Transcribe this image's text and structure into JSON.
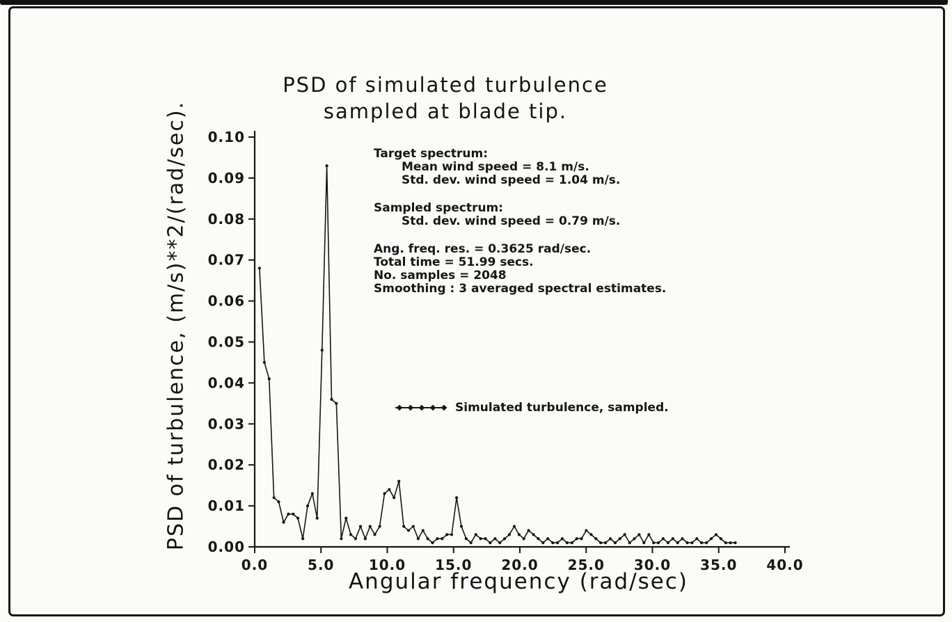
{
  "figure": {
    "title_line1": "PSD of simulated turbulence",
    "title_line2": "sampled at blade tip.",
    "ylabel": "PSD of turbulence, (m/s)**2/(rad/sec).",
    "xlabel": "Angular frequency (rad/sec)"
  },
  "annotations": {
    "target_header": "Target spectrum:",
    "target_mean": "Mean wind speed = 8.1 m/s.",
    "target_std": "Std. dev. wind speed = 1.04 m/s.",
    "sampled_header": "Sampled spectrum:",
    "sampled_std": "Std. dev. wind speed = 0.79 m/s.",
    "freq_res": "Ang. freq. res. = 0.3625 rad/sec.",
    "total_time": "Total time = 51.99 secs.",
    "num_samples": "No. samples = 2048",
    "smoothing": "Smoothing : 3 averaged spectral estimates."
  },
  "legend": {
    "label": "Simulated turbulence, sampled."
  },
  "colors": {
    "ink": "#161616",
    "paper": "#fbfbf8"
  },
  "chart_data": {
    "type": "line",
    "title": "PSD of simulated turbulence sampled at blade tip.",
    "xlabel": "Angular frequency (rad/sec)",
    "ylabel": "PSD of turbulence, (m/s)**2/(rad/sec).",
    "xlim": [
      0.0,
      40.0
    ],
    "ylim": [
      0.0,
      0.1
    ],
    "xticks": [
      0.0,
      5.0,
      10.0,
      15.0,
      20.0,
      25.0,
      30.0,
      35.0,
      40.0
    ],
    "yticks": [
      0.0,
      0.01,
      0.02,
      0.03,
      0.04,
      0.05,
      0.06,
      0.07,
      0.08,
      0.09,
      0.1
    ],
    "grid": false,
    "legend_position": "inside-center",
    "marker": "point",
    "line_color": "#161616",
    "x": [
      0.36,
      0.73,
      1.09,
      1.45,
      1.81,
      2.18,
      2.54,
      2.9,
      3.26,
      3.63,
      3.99,
      4.35,
      4.71,
      5.08,
      5.44,
      5.8,
      6.16,
      6.53,
      6.89,
      7.25,
      7.61,
      7.98,
      8.34,
      8.7,
      9.06,
      9.43,
      9.79,
      10.15,
      10.51,
      10.88,
      11.24,
      11.6,
      11.96,
      12.33,
      12.69,
      13.05,
      13.41,
      13.78,
      14.14,
      14.5,
      14.86,
      15.23,
      15.59,
      15.95,
      16.31,
      16.68,
      17.04,
      17.4,
      17.76,
      18.13,
      18.49,
      18.85,
      19.21,
      19.58,
      19.94,
      20.3,
      20.66,
      21.03,
      21.39,
      21.75,
      22.11,
      22.48,
      22.84,
      23.2,
      23.56,
      23.93,
      24.29,
      24.65,
      25.01,
      25.38,
      25.74,
      26.1,
      26.46,
      26.83,
      27.19,
      27.55,
      27.91,
      28.28,
      28.64,
      29.0,
      29.36,
      29.73,
      30.09,
      30.45,
      30.81,
      31.18,
      31.54,
      31.9,
      32.26,
      32.63,
      32.99,
      33.35,
      33.71,
      34.08,
      34.44,
      34.8,
      35.16,
      35.53,
      35.89,
      36.25
    ],
    "series": [
      {
        "name": "Simulated turbulence, sampled.",
        "values": [
          0.068,
          0.045,
          0.041,
          0.012,
          0.011,
          0.006,
          0.008,
          0.008,
          0.007,
          0.002,
          0.01,
          0.013,
          0.007,
          0.048,
          0.093,
          0.036,
          0.035,
          0.002,
          0.007,
          0.003,
          0.002,
          0.005,
          0.002,
          0.005,
          0.003,
          0.005,
          0.013,
          0.014,
          0.012,
          0.016,
          0.005,
          0.004,
          0.005,
          0.002,
          0.004,
          0.002,
          0.001,
          0.002,
          0.002,
          0.003,
          0.003,
          0.012,
          0.005,
          0.002,
          0.001,
          0.003,
          0.002,
          0.002,
          0.001,
          0.002,
          0.001,
          0.002,
          0.003,
          0.005,
          0.003,
          0.002,
          0.004,
          0.003,
          0.002,
          0.001,
          0.002,
          0.001,
          0.001,
          0.002,
          0.001,
          0.001,
          0.002,
          0.002,
          0.004,
          0.003,
          0.002,
          0.001,
          0.001,
          0.002,
          0.001,
          0.002,
          0.003,
          0.001,
          0.002,
          0.003,
          0.001,
          0.003,
          0.001,
          0.001,
          0.002,
          0.001,
          0.002,
          0.001,
          0.002,
          0.001,
          0.001,
          0.002,
          0.001,
          0.001,
          0.002,
          0.003,
          0.002,
          0.001,
          0.001,
          0.001
        ]
      }
    ]
  }
}
